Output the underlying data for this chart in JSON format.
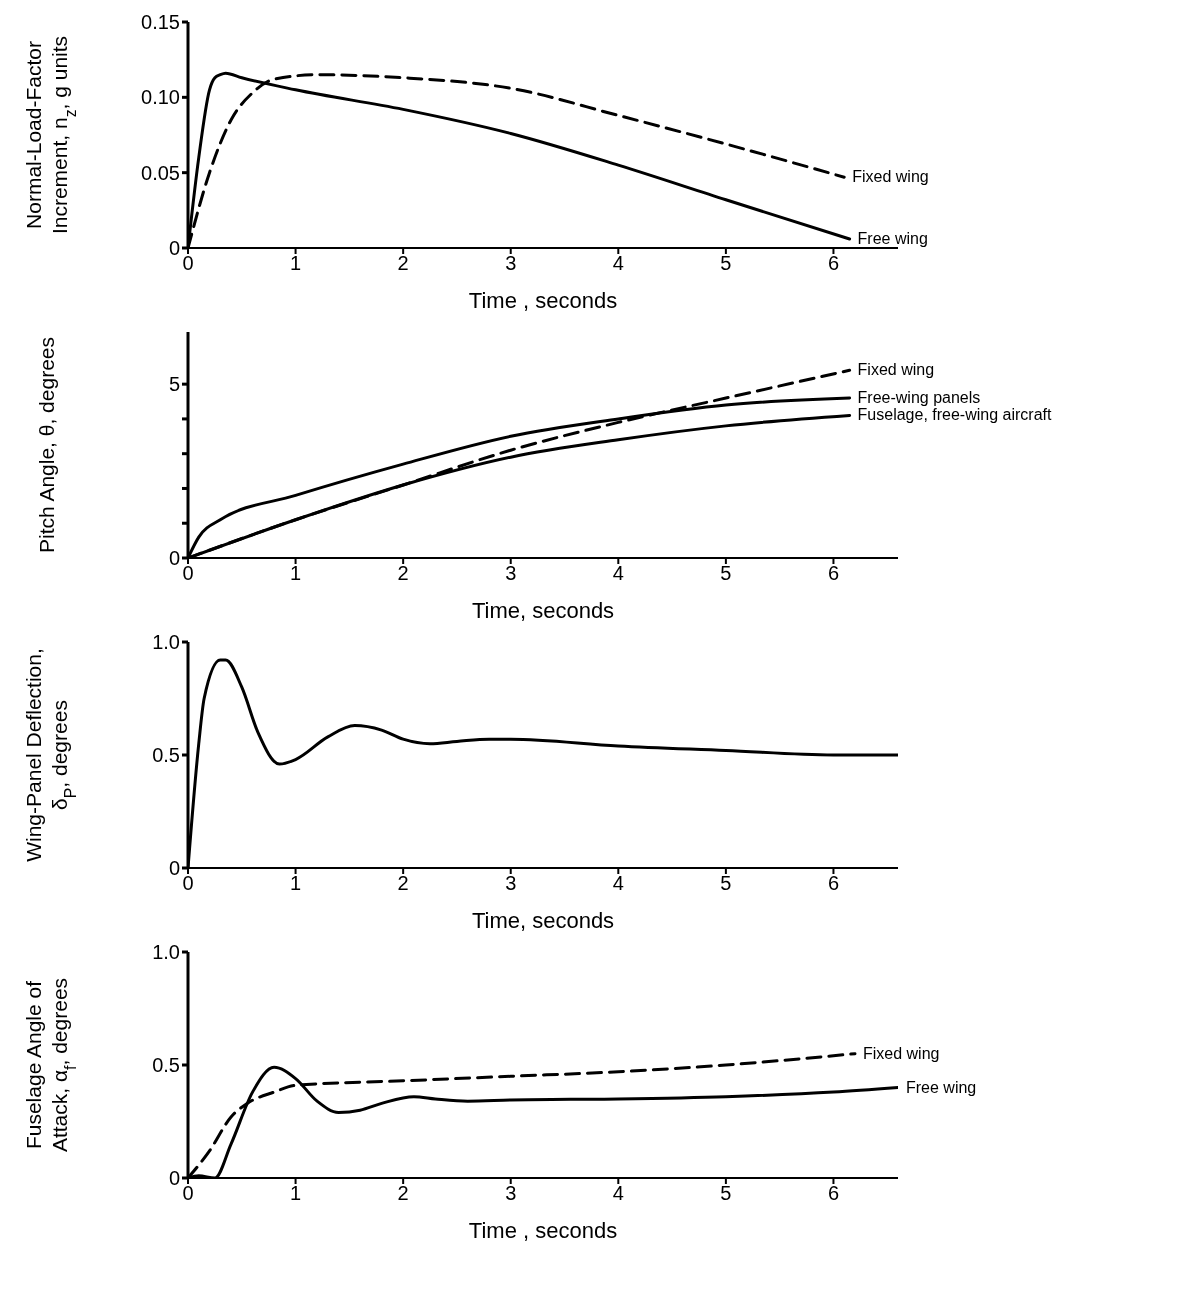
{
  "chart_data": [
    {
      "type": "line",
      "xlabel": "Time , seconds",
      "ylabel": "Normal-Load-Factor Increment, n$_{z}$, g units",
      "xlim": [
        0,
        6.6
      ],
      "xticks": [
        0,
        1,
        2,
        3,
        4,
        5,
        6
      ],
      "ylim": [
        0,
        0.15
      ],
      "yticks": [
        0,
        0.05,
        {
          "value": 0.1,
          "label": "0.10"
        },
        0.15
      ],
      "marker": "none",
      "series": [
        {
          "name": "Free wing",
          "color": "#000000",
          "line_style": "solid",
          "x": [
            0,
            0.1,
            0.2,
            0.25,
            0.3,
            0.35,
            0.5,
            1,
            2,
            3,
            4,
            5,
            6.15
          ],
          "values": [
            0,
            0.06,
            0.105,
            0.113,
            0.115,
            0.116,
            0.113,
            0.105,
            0.092,
            0.076,
            0.055,
            0.032,
            0.006
          ]
        },
        {
          "name": "Fixed wing",
          "color": "#000000",
          "line_style": "dashed",
          "x": [
            0,
            0.2,
            0.4,
            0.6,
            0.8,
            1.2,
            2,
            3,
            4,
            5,
            6.1
          ],
          "values": [
            0,
            0.05,
            0.085,
            0.103,
            0.112,
            0.115,
            0.113,
            0.106,
            0.088,
            0.069,
            0.047
          ]
        }
      ]
    },
    {
      "type": "line",
      "xlabel": "Time, seconds",
      "ylabel": "Pitch Angle, θ, degrees",
      "xlim": [
        0,
        6.6
      ],
      "xticks": [
        0,
        1,
        2,
        3,
        4,
        5,
        6
      ],
      "ylim": [
        0,
        6.5
      ],
      "yticks": [
        0,
        {
          "value": 1,
          "label": null
        },
        {
          "value": 2,
          "label": null
        },
        {
          "value": 3,
          "label": null
        },
        {
          "value": 4,
          "label": null
        },
        5
      ],
      "marker": "none",
      "series": [
        {
          "name": "Free-wing panels",
          "color": "#000000",
          "line_style": "solid",
          "x": [
            0,
            0.1,
            0.3,
            1,
            2,
            3,
            4,
            5,
            6.15
          ],
          "values": [
            0,
            0.6,
            1.1,
            1.8,
            2.7,
            3.5,
            4.0,
            4.4,
            4.6
          ]
        },
        {
          "name": "Fixed wing",
          "color": "#000000",
          "line_style": "dashed",
          "x": [
            0,
            1,
            2,
            3,
            4,
            5,
            6.15
          ],
          "values": [
            0,
            1.1,
            2.1,
            3.1,
            3.9,
            4.6,
            5.4
          ]
        },
        {
          "name": "Fuselage, free-wing aircraft",
          "color": "#000000",
          "line_style": "solid",
          "x": [
            0,
            1,
            2,
            3,
            4,
            5,
            6.15
          ],
          "values": [
            0,
            1.1,
            2.1,
            2.9,
            3.4,
            3.8,
            4.1
          ]
        }
      ]
    },
    {
      "type": "line",
      "xlabel": "Time, seconds",
      "ylabel": "Wing-Panel Deflection, δ$_{P}$, degrees",
      "xlim": [
        0,
        6.6
      ],
      "xticks": [
        0,
        1,
        2,
        3,
        4,
        5,
        6
      ],
      "ylim": [
        0,
        1
      ],
      "yticks": [
        0,
        0.5,
        {
          "value": 1,
          "label": "1.0"
        }
      ],
      "marker": "none",
      "series": [
        {
          "color": "#000000",
          "line_style": "solid",
          "x": [
            0,
            0.1,
            0.15,
            0.3,
            0.35,
            0.5,
            0.65,
            0.85,
            1,
            1.3,
            1.55,
            1.8,
            2,
            2.25,
            2.5,
            2.8,
            3,
            4,
            5,
            6,
            6.6
          ],
          "values": [
            0,
            0.55,
            0.75,
            0.92,
            0.92,
            0.8,
            0.6,
            0.46,
            0.48,
            0.58,
            0.63,
            0.61,
            0.57,
            0.55,
            0.56,
            0.57,
            0.57,
            0.54,
            0.52,
            0.5,
            0.5
          ]
        }
      ]
    },
    {
      "type": "line",
      "xlabel": "Time , seconds",
      "ylabel": "Fuselage Angle of Attack, α$_{f}$, degrees",
      "xlim": [
        0,
        6.6
      ],
      "xticks": [
        0,
        1,
        2,
        3,
        4,
        5,
        6
      ],
      "ylim": [
        0,
        1
      ],
      "yticks": [
        0,
        0.5,
        {
          "value": 1,
          "label": "1.0"
        }
      ],
      "marker": "none",
      "series": [
        {
          "name": "Fixed wing",
          "color": "#000000",
          "line_style": "dashed",
          "x": [
            0,
            0.2,
            0.4,
            0.55,
            0.8,
            1,
            2,
            3,
            4,
            5,
            6.2
          ],
          "values": [
            0,
            0.12,
            0.27,
            0.33,
            0.38,
            0.41,
            0.43,
            0.45,
            0.47,
            0.5,
            0.55
          ]
        },
        {
          "name": "Free wing",
          "color": "#000000",
          "line_style": "solid",
          "x": [
            0,
            0.1,
            0.25,
            0.4,
            0.6,
            0.8,
            1,
            1.2,
            1.4,
            1.6,
            1.8,
            2.1,
            2.3,
            2.6,
            3,
            4,
            5,
            6,
            6.6
          ],
          "values": [
            0,
            0.01,
            0,
            0.15,
            0.38,
            0.49,
            0.44,
            0.34,
            0.29,
            0.3,
            0.33,
            0.36,
            0.35,
            0.34,
            0.345,
            0.35,
            0.36,
            0.38,
            0.4
          ]
        }
      ]
    }
  ]
}
